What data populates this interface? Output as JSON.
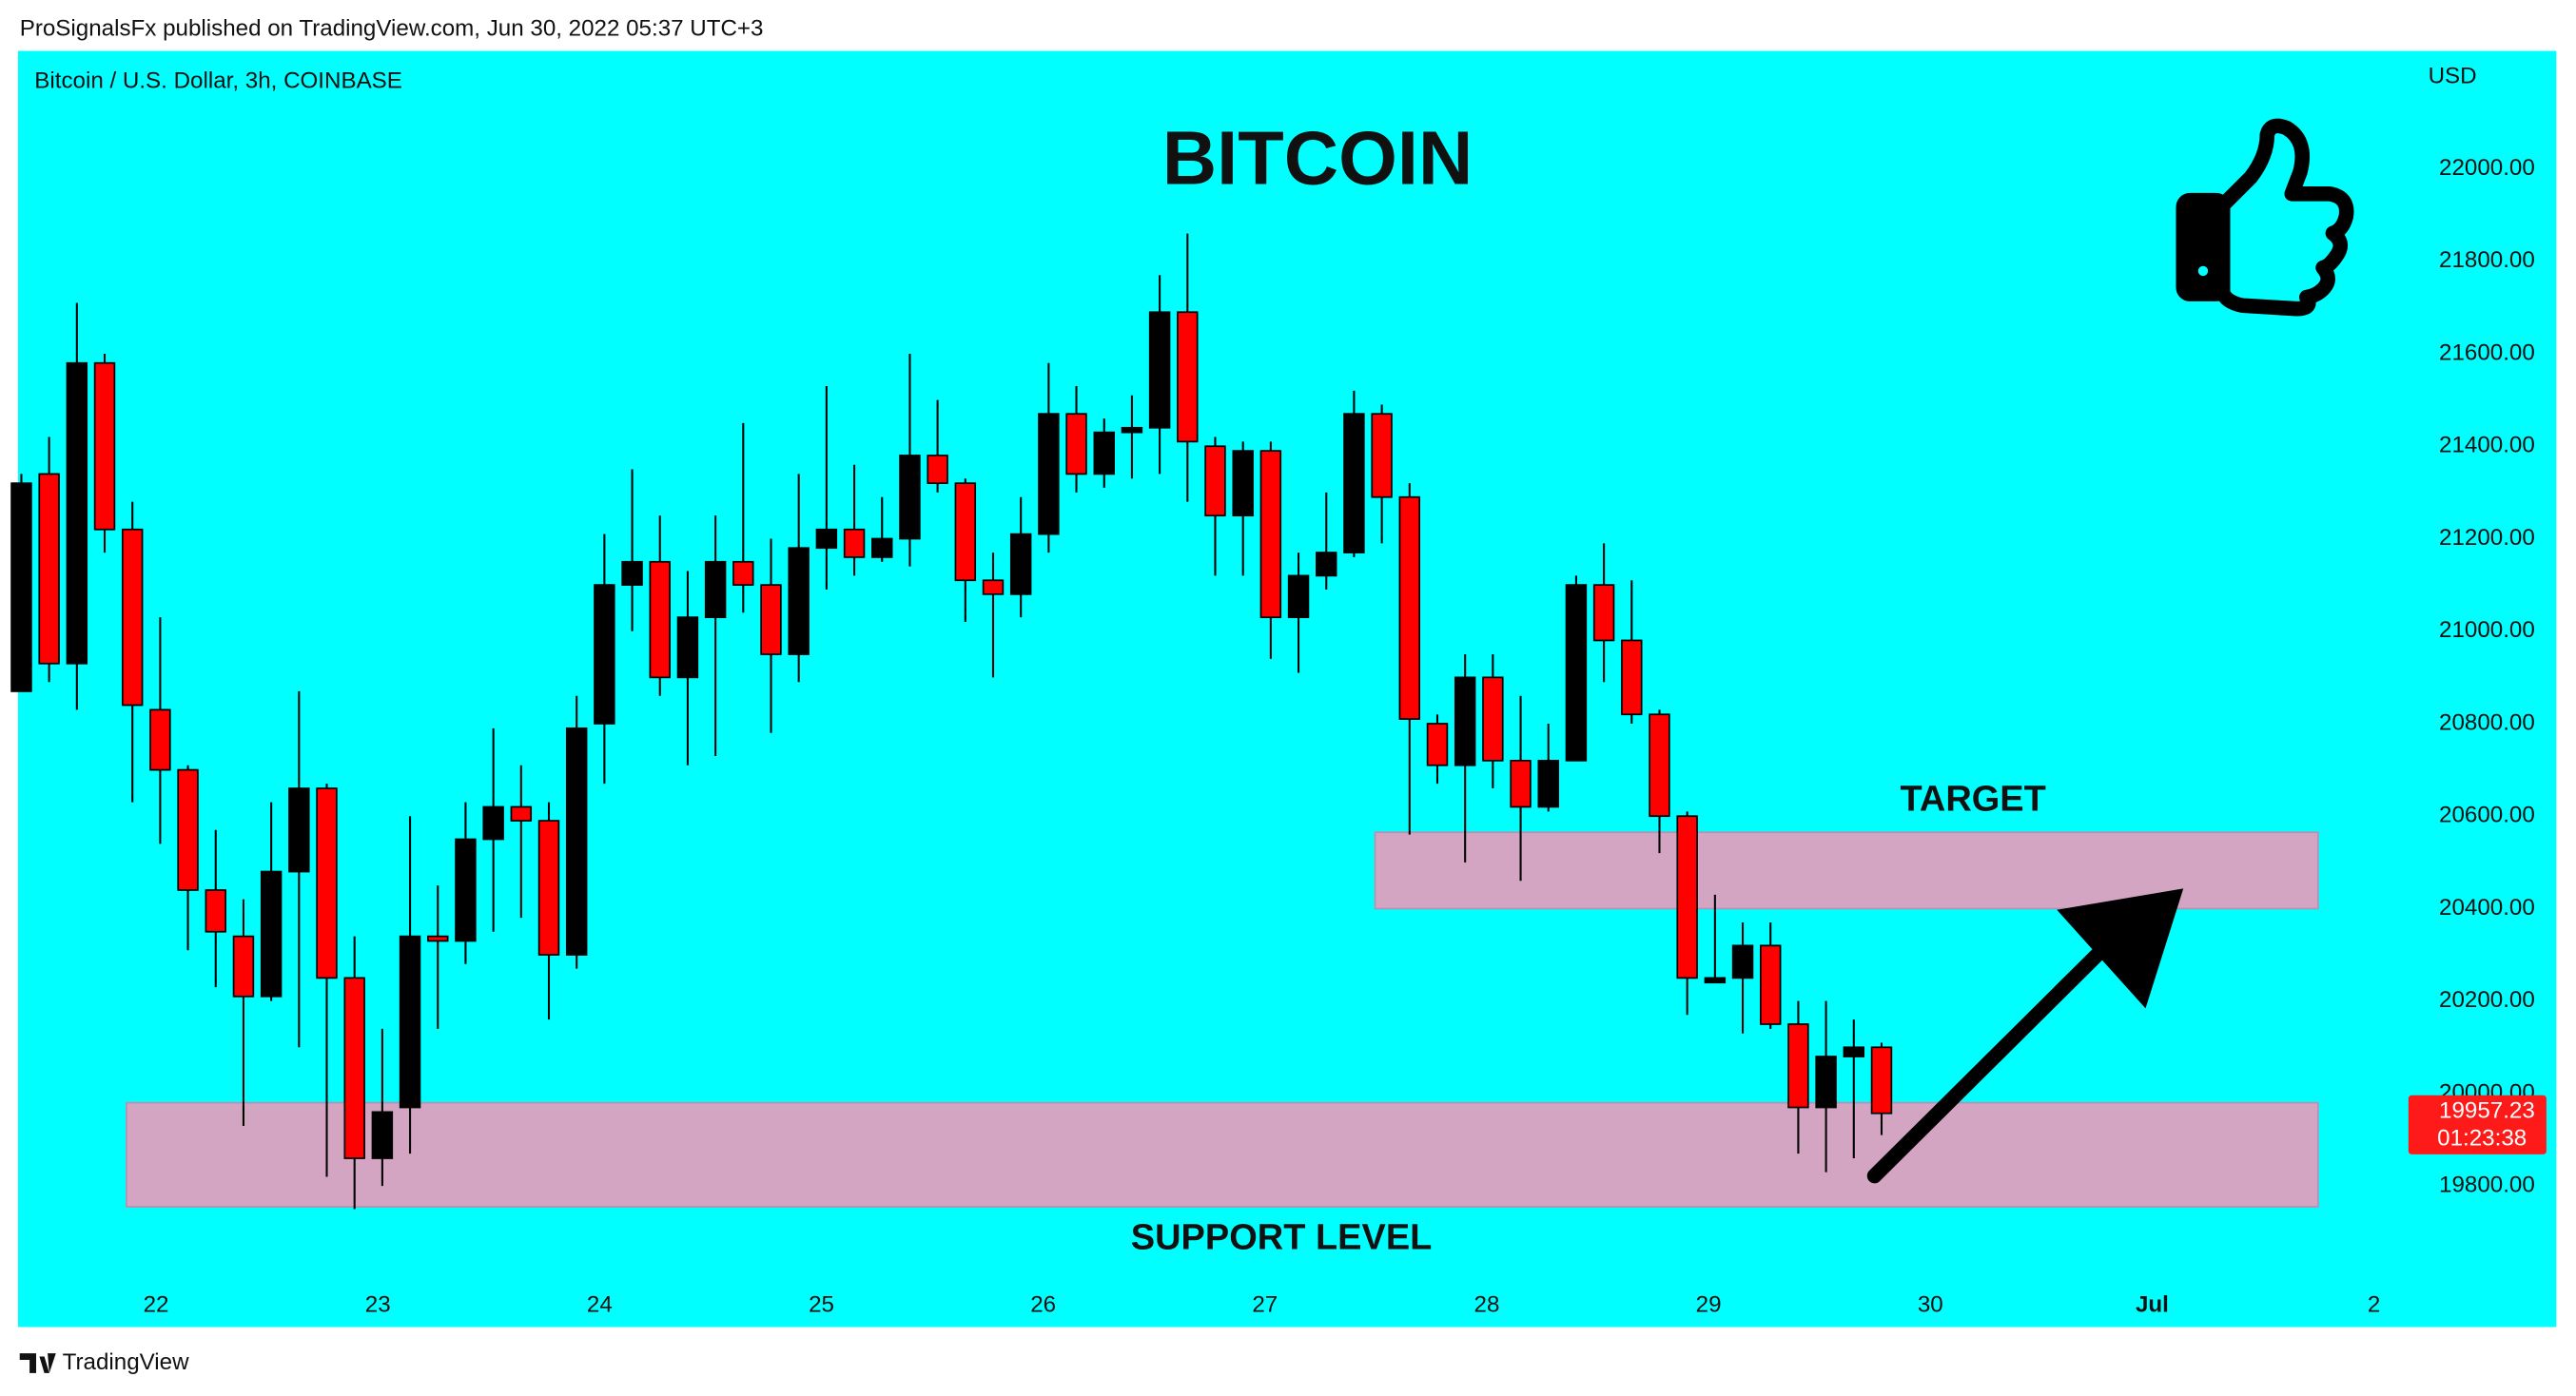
{
  "header": "ProSignalsFx published on TradingView.com, Jun 30, 2022 05:37 UTC+3",
  "footer": "TradingView",
  "chart_data": {
    "type": "candlestick",
    "symbol": "Bitcoin / U.S. Dollar, 3h, COINBASE",
    "currency": "USD",
    "title": "BITCOIN",
    "up_color": "#000000",
    "down_color": "#ff0000",
    "open": [
      20870,
      21340,
      20930,
      21580,
      21220,
      20830,
      20700,
      20440,
      20340,
      20210,
      20480,
      20660,
      20250,
      19860,
      19970,
      20340,
      20330,
      20550,
      20620,
      20590,
      20300,
      20800,
      21100,
      21150,
      20900,
      21030,
      21150,
      21100,
      20950,
      21180,
      21220,
      21160,
      21200,
      21380,
      21320,
      21110,
      21080,
      21210,
      21470,
      21340,
      21430,
      21440,
      21690,
      21400,
      21250,
      21390,
      21030,
      21120,
      21170,
      21470,
      21290,
      20800,
      20710,
      20900,
      20720,
      20620,
      20720,
      21100,
      20980,
      20820,
      20600,
      20240,
      20250,
      20320,
      20150,
      19970,
      20080,
      20100
    ],
    "high": [
      21340,
      21420,
      21710,
      21600,
      21280,
      21030,
      20710,
      20570,
      20420,
      20630,
      20870,
      20670,
      20340,
      20140,
      20600,
      20450,
      20630,
      20790,
      20710,
      20630,
      20860,
      21210,
      21350,
      21250,
      21130,
      21250,
      21450,
      21200,
      21340,
      21530,
      21360,
      21290,
      21600,
      21500,
      21330,
      21170,
      21290,
      21580,
      21530,
      21460,
      21510,
      21770,
      21860,
      21420,
      21410,
      21410,
      21170,
      21300,
      21520,
      21490,
      21320,
      20820,
      20950,
      20950,
      20860,
      20800,
      21120,
      21190,
      21110,
      20830,
      20610,
      20430,
      20370,
      20370,
      20200,
      20200,
      20160,
      20110
    ],
    "low": [
      20870,
      20890,
      20830,
      21170,
      20630,
      20540,
      20310,
      20230,
      19930,
      20200,
      20100,
      19820,
      19750,
      19800,
      19870,
      20140,
      20280,
      20350,
      20380,
      20160,
      20270,
      20670,
      21000,
      20860,
      20710,
      20730,
      21040,
      20780,
      20890,
      21090,
      21120,
      21150,
      21140,
      21300,
      21020,
      20900,
      21030,
      21170,
      21300,
      21310,
      21330,
      21340,
      21280,
      21120,
      21120,
      20940,
      20910,
      21090,
      21160,
      21190,
      20560,
      20670,
      20500,
      20660,
      20460,
      20610,
      20720,
      20890,
      20800,
      20520,
      20170,
      20240,
      20130,
      20140,
      19870,
      19830,
      19860,
      19910
    ],
    "close": [
      21320,
      20930,
      21580,
      21220,
      20840,
      20700,
      20440,
      20350,
      20210,
      20480,
      20660,
      20250,
      19860,
      19960,
      20340,
      20330,
      20550,
      20620,
      20590,
      20300,
      20790,
      21100,
      21150,
      20900,
      21030,
      21150,
      21100,
      20950,
      21180,
      21220,
      21160,
      21200,
      21380,
      21320,
      21110,
      21080,
      21210,
      21470,
      21340,
      21430,
      21440,
      21690,
      21410,
      21250,
      21390,
      21030,
      21120,
      21170,
      21470,
      21290,
      20810,
      20710,
      20900,
      20720,
      20620,
      20720,
      21100,
      20980,
      20820,
      20600,
      20250,
      20250,
      20320,
      20150,
      19970,
      20080,
      20100,
      19957.23
    ],
    "countdown": "01:23:38",
    "x_labels": [
      "22",
      "23",
      "24",
      "25",
      "26",
      "27",
      "28",
      "29",
      "30",
      "Jul",
      "2"
    ],
    "ylim": [
      19495,
      22255
    ],
    "yticks": [
      {
        "value": 19800,
        "label": "19800.00"
      },
      {
        "value": 20000,
        "label": "20000.00"
      },
      {
        "value": 20200,
        "label": "20200.00"
      },
      {
        "value": 20400,
        "label": "20400.00"
      },
      {
        "value": 20600,
        "label": "20600.00"
      },
      {
        "value": 20800,
        "label": "20800.00"
      },
      {
        "value": 21000,
        "label": "21000.00"
      },
      {
        "value": 21200,
        "label": "21200.00"
      },
      {
        "value": 21400,
        "label": "21400.00"
      },
      {
        "value": 21600,
        "label": "21600.00"
      },
      {
        "value": 21800,
        "label": "21800.00"
      },
      {
        "value": 22000,
        "label": "22000.00"
      }
    ],
    "zones": [
      {
        "label": "TARGET",
        "ymin": 20400,
        "ymax": 20565,
        "color": "#d4a5c2"
      },
      {
        "label": "SUPPORT LEVEL",
        "ymin": 19755,
        "ymax": 19980,
        "color": "#d4a5c2"
      }
    ],
    "grid": false
  }
}
